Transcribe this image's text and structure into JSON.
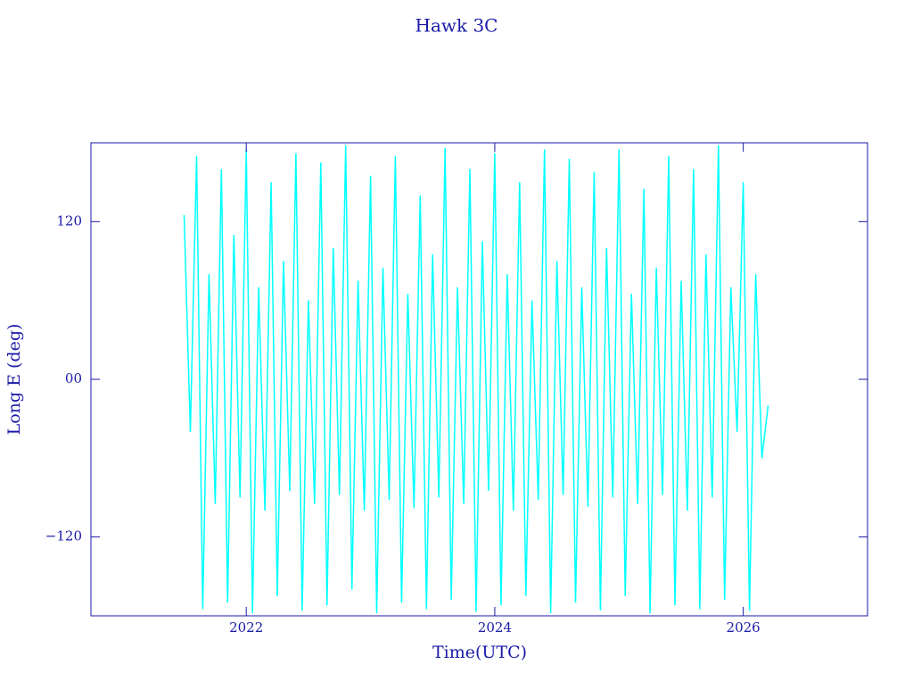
{
  "chart_data": {
    "type": "line",
    "title": "Hawk 3C",
    "x_label": "Time(UTC)",
    "y_label": "Long E (deg)",
    "xlim": [
      2020.75,
      2027.0
    ],
    "xticks": [
      2022,
      2024,
      2026
    ],
    "ylim": [
      -180,
      180
    ],
    "yticks": [
      {
        "value": -120,
        "label": "−120"
      },
      {
        "value": 0,
        "label": "00"
      },
      120
    ],
    "axis_color": "#1a1aa8",
    "series": [
      {
        "color": "#00ffff",
        "x": [
          2021.5,
          2021.55,
          2021.6,
          2021.65,
          2021.7,
          2021.75,
          2021.8,
          2021.85,
          2021.9,
          2021.95,
          2022.0,
          2022.05,
          2022.1,
          2022.15,
          2022.2,
          2022.25,
          2022.3,
          2022.35,
          2022.4,
          2022.45,
          2022.5,
          2022.55,
          2022.6,
          2022.65,
          2022.7,
          2022.75,
          2022.8,
          2022.85,
          2022.9,
          2022.95,
          2023.0,
          2023.05,
          2023.1,
          2023.15,
          2023.2,
          2023.25,
          2023.3,
          2023.35,
          2023.4,
          2023.45,
          2023.5,
          2023.55,
          2023.6,
          2023.65,
          2023.7,
          2023.75,
          2023.8,
          2023.85,
          2023.9,
          2023.95,
          2024.0,
          2024.05,
          2024.1,
          2024.15,
          2024.2,
          2024.25,
          2024.3,
          2024.35,
          2024.4,
          2024.45,
          2024.5,
          2024.55,
          2024.6,
          2024.65,
          2024.7,
          2024.75,
          2024.8,
          2024.85,
          2024.9,
          2024.95,
          2025.0,
          2025.05,
          2025.1,
          2025.15,
          2025.2,
          2025.25,
          2025.3,
          2025.35,
          2025.4,
          2025.45,
          2025.5,
          2025.55,
          2025.6,
          2025.65,
          2025.7,
          2025.75,
          2025.8,
          2025.85,
          2025.9,
          2025.95,
          2026.0,
          2026.05,
          2026.1,
          2026.15,
          2026.2
        ],
        "values": [
          125,
          -40,
          170,
          -175,
          80,
          -95,
          160,
          -170,
          110,
          -90,
          175,
          -178,
          70,
          -100,
          150,
          -165,
          90,
          -85,
          172,
          -176,
          60,
          -95,
          165,
          -172,
          100,
          -88,
          178,
          -160,
          75,
          -100,
          155,
          -178,
          85,
          -92,
          170,
          -170,
          65,
          -98,
          140,
          -175,
          95,
          -90,
          176,
          -168,
          70,
          -95,
          160,
          -177,
          105,
          -85,
          172,
          -172,
          80,
          -100,
          150,
          -165,
          60,
          -92,
          175,
          -178,
          90,
          -88,
          168,
          -170,
          70,
          -97,
          158,
          -176,
          100,
          -90,
          175,
          -165,
          65,
          -95,
          145,
          -178,
          85,
          -88,
          170,
          -172,
          75,
          -100,
          160,
          -175,
          95,
          -90,
          178,
          -168,
          70,
          -40,
          150,
          -176,
          80,
          -60,
          -20
        ]
      }
    ]
  }
}
